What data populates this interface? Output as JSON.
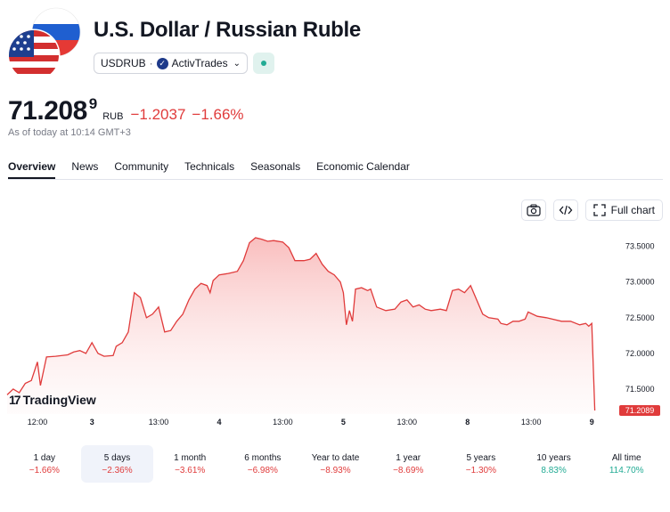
{
  "header": {
    "title": "U.S. Dollar / Russian Ruble",
    "symbol": "USDRUB",
    "separator": "·",
    "broker": "ActivTrades"
  },
  "quote": {
    "price": "71.208",
    "price_superscript": "9",
    "currency": "RUB",
    "change": "−1.2037",
    "change_percent": "−1.66%",
    "as_of": "As of today at 10:14 GMT+3"
  },
  "tabs": [
    {
      "label": "Overview",
      "active": true
    },
    {
      "label": "News"
    },
    {
      "label": "Community"
    },
    {
      "label": "Technicals"
    },
    {
      "label": "Seasonals"
    },
    {
      "label": "Economic Calendar"
    }
  ],
  "chart_tools": {
    "full_chart_label": "Full chart"
  },
  "chart_data": {
    "type": "area",
    "y_ticks": [
      "73.5000",
      "73.0000",
      "72.5000",
      "72.0000",
      "71.5000"
    ],
    "y_tick_values": [
      73.5,
      73.0,
      72.5,
      72.0,
      71.5
    ],
    "x_ticks": [
      {
        "label": "12:00",
        "t": 0.05,
        "bold": false
      },
      {
        "label": "3",
        "t": 0.14,
        "bold": true
      },
      {
        "label": "13:00",
        "t": 0.25,
        "bold": false
      },
      {
        "label": "4",
        "t": 0.35,
        "bold": true
      },
      {
        "label": "13:00",
        "t": 0.455,
        "bold": false
      },
      {
        "label": "5",
        "t": 0.555,
        "bold": true
      },
      {
        "label": "13:00",
        "t": 0.66,
        "bold": false
      },
      {
        "label": "8",
        "t": 0.76,
        "bold": true
      },
      {
        "label": "13:00",
        "t": 0.865,
        "bold": false
      },
      {
        "label": "9",
        "t": 0.965,
        "bold": true
      }
    ],
    "ylim": [
      71.15,
      73.72
    ],
    "last_price_label": "71.2089",
    "line_color": "#e03b3b",
    "series": [
      {
        "values": [
          [
            0.0,
            71.42
          ],
          [
            0.01,
            71.5
          ],
          [
            0.02,
            71.45
          ],
          [
            0.03,
            71.58
          ],
          [
            0.04,
            71.62
          ],
          [
            0.05,
            71.88
          ],
          [
            0.055,
            71.55
          ],
          [
            0.065,
            71.95
          ],
          [
            0.08,
            71.96
          ],
          [
            0.1,
            71.98
          ],
          [
            0.11,
            72.02
          ],
          [
            0.12,
            72.04
          ],
          [
            0.13,
            72.0
          ],
          [
            0.14,
            72.15
          ],
          [
            0.15,
            72.0
          ],
          [
            0.16,
            71.96
          ],
          [
            0.175,
            71.97
          ],
          [
            0.18,
            72.1
          ],
          [
            0.19,
            72.15
          ],
          [
            0.2,
            72.3
          ],
          [
            0.21,
            72.85
          ],
          [
            0.22,
            72.78
          ],
          [
            0.23,
            72.5
          ],
          [
            0.24,
            72.55
          ],
          [
            0.25,
            72.65
          ],
          [
            0.26,
            72.3
          ],
          [
            0.27,
            72.32
          ],
          [
            0.28,
            72.45
          ],
          [
            0.29,
            72.55
          ],
          [
            0.3,
            72.75
          ],
          [
            0.31,
            72.9
          ],
          [
            0.32,
            72.98
          ],
          [
            0.33,
            72.95
          ],
          [
            0.335,
            72.85
          ],
          [
            0.34,
            73.02
          ],
          [
            0.35,
            73.1
          ],
          [
            0.365,
            73.12
          ],
          [
            0.38,
            73.15
          ],
          [
            0.39,
            73.3
          ],
          [
            0.4,
            73.55
          ],
          [
            0.41,
            73.62
          ],
          [
            0.42,
            73.6
          ],
          [
            0.43,
            73.57
          ],
          [
            0.44,
            73.58
          ],
          [
            0.455,
            73.56
          ],
          [
            0.465,
            73.48
          ],
          [
            0.475,
            73.3
          ],
          [
            0.49,
            73.3
          ],
          [
            0.5,
            73.32
          ],
          [
            0.51,
            73.4
          ],
          [
            0.52,
            73.25
          ],
          [
            0.53,
            73.15
          ],
          [
            0.54,
            73.1
          ],
          [
            0.55,
            73.0
          ],
          [
            0.555,
            72.85
          ],
          [
            0.56,
            72.4
          ],
          [
            0.565,
            72.6
          ],
          [
            0.57,
            72.45
          ],
          [
            0.575,
            72.9
          ],
          [
            0.585,
            72.92
          ],
          [
            0.595,
            72.88
          ],
          [
            0.6,
            72.9
          ],
          [
            0.61,
            72.65
          ],
          [
            0.625,
            72.6
          ],
          [
            0.64,
            72.62
          ],
          [
            0.65,
            72.72
          ],
          [
            0.66,
            72.75
          ],
          [
            0.67,
            72.65
          ],
          [
            0.68,
            72.68
          ],
          [
            0.69,
            72.62
          ],
          [
            0.7,
            72.6
          ],
          [
            0.715,
            72.62
          ],
          [
            0.725,
            72.6
          ],
          [
            0.735,
            72.88
          ],
          [
            0.745,
            72.9
          ],
          [
            0.755,
            72.85
          ],
          [
            0.765,
            72.95
          ],
          [
            0.775,
            72.75
          ],
          [
            0.785,
            72.55
          ],
          [
            0.795,
            72.5
          ],
          [
            0.81,
            72.48
          ],
          [
            0.815,
            72.42
          ],
          [
            0.825,
            72.4
          ],
          [
            0.835,
            72.45
          ],
          [
            0.845,
            72.45
          ],
          [
            0.855,
            72.48
          ],
          [
            0.86,
            72.58
          ],
          [
            0.875,
            72.52
          ],
          [
            0.89,
            72.5
          ],
          [
            0.9,
            72.48
          ],
          [
            0.915,
            72.45
          ],
          [
            0.93,
            72.45
          ],
          [
            0.945,
            72.4
          ],
          [
            0.955,
            72.42
          ],
          [
            0.96,
            72.38
          ],
          [
            0.965,
            72.42
          ],
          [
            0.97,
            71.2
          ]
        ]
      }
    ]
  },
  "branding": {
    "logo_mark": "17",
    "logo_text": "TradingView"
  },
  "periods": [
    {
      "label": "1 day",
      "value": "−1.66%",
      "tone": "neg"
    },
    {
      "label": "5 days",
      "value": "−2.36%",
      "tone": "neg",
      "active": true
    },
    {
      "label": "1 month",
      "value": "−3.61%",
      "tone": "neg"
    },
    {
      "label": "6 months",
      "value": "−6.98%",
      "tone": "neg"
    },
    {
      "label": "Year to date",
      "value": "−8.93%",
      "tone": "neg"
    },
    {
      "label": "1 year",
      "value": "−8.69%",
      "tone": "neg"
    },
    {
      "label": "5 years",
      "value": "−1.30%",
      "tone": "neg"
    },
    {
      "label": "10 years",
      "value": "8.83%",
      "tone": "pos"
    },
    {
      "label": "All time",
      "value": "114.70%",
      "tone": "pos"
    }
  ]
}
